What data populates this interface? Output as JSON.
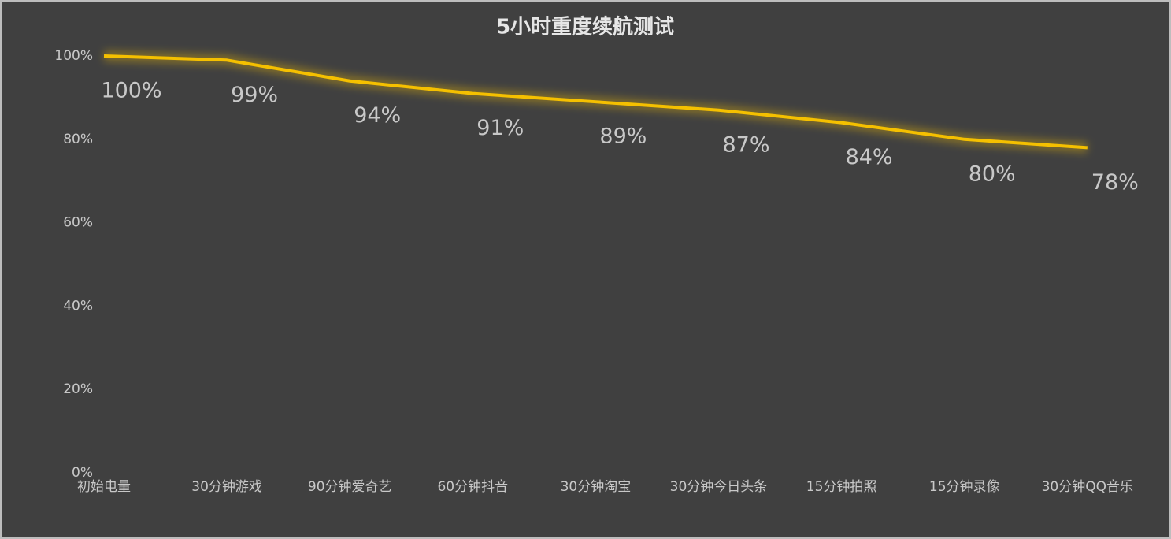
{
  "chart_data": {
    "type": "line",
    "title": "5小时重度续航测试",
    "categories": [
      "初始电量",
      "30分钟游戏",
      "90分钟爱奇艺",
      "60分钟抖音",
      "30分钟淘宝",
      "30分钟今日头条",
      "15分钟拍照",
      "15分钟录像",
      "30分钟QQ音乐"
    ],
    "values": [
      100,
      99,
      94,
      91,
      89,
      87,
      84,
      80,
      78
    ],
    "value_labels": [
      "100%",
      "99%",
      "94%",
      "91%",
      "89%",
      "87%",
      "84%",
      "80%",
      "78%"
    ],
    "color": "#f5c000",
    "ylim": [
      0,
      100
    ],
    "yticks": [
      {
        "value": 0,
        "label": "0%"
      },
      {
        "value": 20,
        "label": "20%"
      },
      {
        "value": 40,
        "label": "40%"
      },
      {
        "value": 60,
        "label": "60%"
      },
      {
        "value": 80,
        "label": "80%"
      },
      {
        "value": 100,
        "label": "100%"
      }
    ],
    "grid": false
  }
}
